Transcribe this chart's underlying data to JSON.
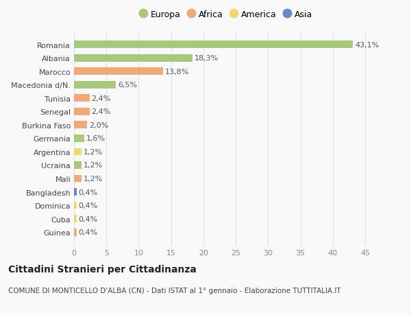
{
  "countries": [
    "Romania",
    "Albania",
    "Marocco",
    "Macedonia d/N.",
    "Tunisia",
    "Senegal",
    "Burkina Faso",
    "Germania",
    "Argentina",
    "Ucraina",
    "Mali",
    "Bangladesh",
    "Dominica",
    "Cuba",
    "Guinea"
  ],
  "values": [
    43.1,
    18.3,
    13.8,
    6.5,
    2.4,
    2.4,
    2.0,
    1.6,
    1.2,
    1.2,
    1.2,
    0.4,
    0.4,
    0.4,
    0.4
  ],
  "labels": [
    "43,1%",
    "18,3%",
    "13,8%",
    "6,5%",
    "2,4%",
    "2,4%",
    "2,0%",
    "1,6%",
    "1,2%",
    "1,2%",
    "1,2%",
    "0,4%",
    "0,4%",
    "0,4%",
    "0,4%"
  ],
  "categories": [
    "Europa",
    "Africa",
    "America",
    "Asia"
  ],
  "bar_colors": [
    "#a8c87a",
    "#a8c87a",
    "#f0aa78",
    "#a8c87a",
    "#f0aa78",
    "#f0aa78",
    "#f0aa78",
    "#a8c87a",
    "#f0d870",
    "#a8c87a",
    "#f0aa78",
    "#6888c8",
    "#f0d870",
    "#f0d870",
    "#f0aa78"
  ],
  "legend_colors": [
    "#a8c87a",
    "#f0aa78",
    "#f0d870",
    "#6888c8"
  ],
  "title": "Cittadini Stranieri per Cittadinanza",
  "subtitle": "COMUNE DI MONTICELLO D'ALBA (CN) - Dati ISTAT al 1° gennaio - Elaborazione TUTTITALIA.IT",
  "xlim": [
    0,
    47
  ],
  "xticks": [
    0,
    5,
    10,
    15,
    20,
    25,
    30,
    35,
    40,
    45
  ],
  "background_color": "#f9f9f9",
  "grid_color": "#e0e0e0",
  "bar_height": 0.55,
  "label_fontsize": 8,
  "tick_fontsize": 8,
  "title_fontsize": 10,
  "subtitle_fontsize": 7.5,
  "legend_fontsize": 9
}
